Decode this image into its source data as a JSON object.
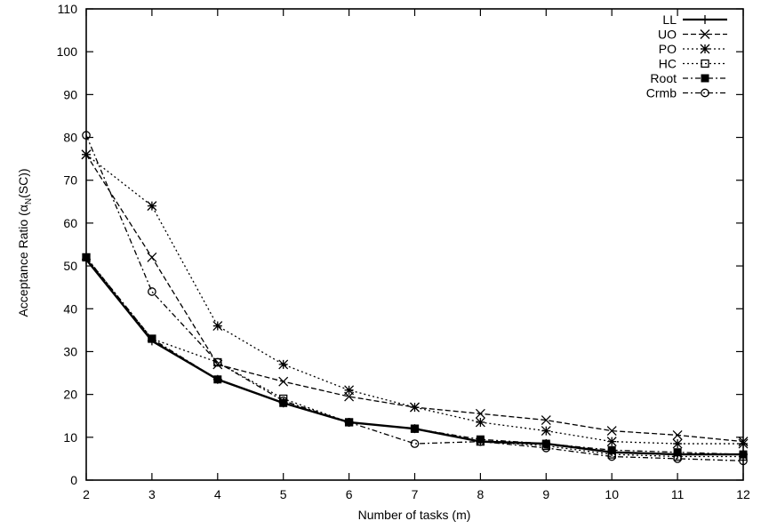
{
  "chart_data": {
    "type": "line",
    "title": "",
    "xlabel": "Number of tasks (m)",
    "ylabel_main": "Acceptance Ratio (α",
    "ylabel_sub": "N",
    "ylabel_tail": "(SC))",
    "xlim": [
      2,
      12
    ],
    "ylim": [
      0,
      110
    ],
    "x_ticks": [
      "2",
      "3",
      "4",
      "5",
      "6",
      "7",
      "8",
      "9",
      "10",
      "11",
      "12"
    ],
    "y_ticks": [
      "0",
      "10",
      "20",
      "30",
      "40",
      "50",
      "60",
      "70",
      "80",
      "90",
      "100",
      "110"
    ],
    "grid": false,
    "legend_position": "top-right",
    "x": [
      2,
      3,
      4,
      5,
      6,
      7,
      8,
      9,
      10,
      11,
      12
    ],
    "series": [
      {
        "name": "LL",
        "marker": "plus",
        "dash": "solid",
        "values": [
          51.5,
          32.5,
          23.5,
          18,
          13.5,
          12,
          9,
          8.5,
          6.5,
          6,
          6
        ]
      },
      {
        "name": "UO",
        "marker": "x",
        "dash": "dashed",
        "values": [
          76,
          52,
          27,
          23,
          19.5,
          17,
          15.5,
          14,
          11.5,
          10.5,
          9
        ]
      },
      {
        "name": "PO",
        "marker": "star",
        "dash": "dotted",
        "values": [
          76,
          64,
          36,
          27,
          21,
          17,
          13.5,
          11.5,
          9,
          8.5,
          8.5
        ]
      },
      {
        "name": "HC",
        "marker": "square-open",
        "dash": "dotted",
        "values": [
          52,
          33,
          27.5,
          19,
          13.5,
          12,
          9,
          8,
          6,
          5.5,
          5.5
        ]
      },
      {
        "name": "Root",
        "marker": "square-filled",
        "dash": "dashdot",
        "values": [
          52,
          33,
          23.5,
          18,
          13.5,
          12,
          9.5,
          8.5,
          7,
          6.5,
          6
        ]
      },
      {
        "name": "Crmb",
        "marker": "circle-open",
        "dash": "dashdot",
        "values": [
          80.5,
          44,
          27.5,
          18.5,
          13.5,
          8.5,
          9,
          7.5,
          5.5,
          5,
          4.5
        ]
      }
    ]
  }
}
